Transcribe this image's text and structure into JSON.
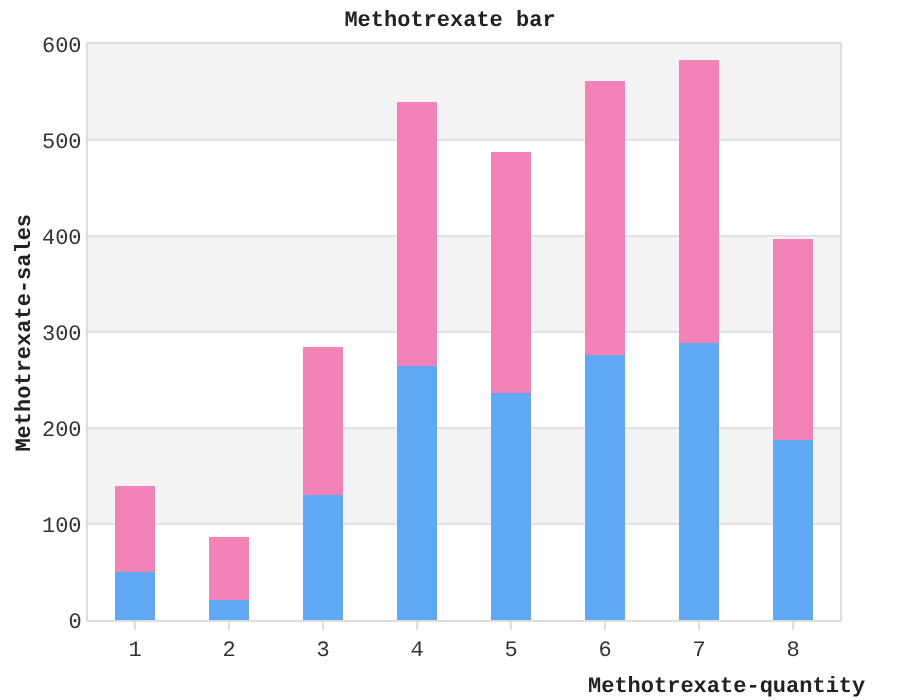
{
  "chart_data": {
    "type": "bar",
    "title": "Methotrexate bar",
    "xlabel": "Methotrexate-quantity",
    "ylabel": "Methotrexate-sales",
    "categories": [
      "1",
      "2",
      "3",
      "4",
      "5",
      "6",
      "7",
      "8"
    ],
    "stacked": true,
    "series": [
      {
        "color": "#60a8f4",
        "values": [
          50,
          21,
          130,
          265,
          236,
          276,
          289,
          188
        ]
      },
      {
        "color": "#f283b9",
        "values": [
          90,
          65,
          154,
          275,
          251,
          285,
          294,
          209
        ]
      }
    ],
    "ylim": [
      0,
      600
    ],
    "yticks": [
      0,
      100,
      200,
      300,
      400,
      500,
      600
    ],
    "grid": "y"
  }
}
